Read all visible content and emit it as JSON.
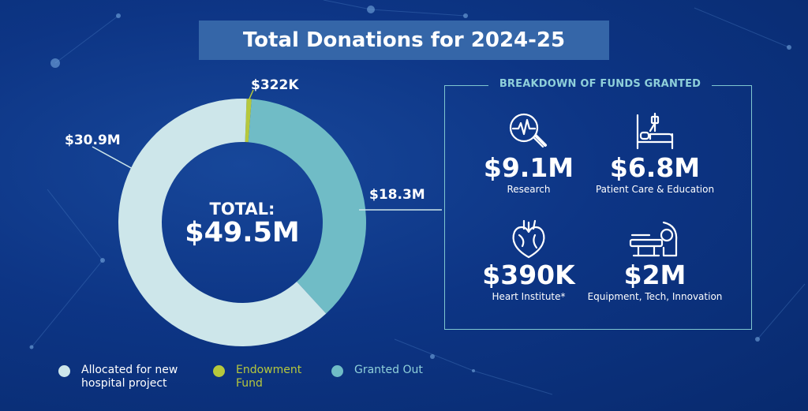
{
  "title": "Total Donations for 2024-25",
  "colors": {
    "background": "#0d3585",
    "allocated": "#cde6ea",
    "endowment": "#b6c83c",
    "granted": "#70bcc6",
    "title_box": "#3566a8",
    "panel_accent": "#8fd0da"
  },
  "chart_data": {
    "type": "pie",
    "title": "Total Donations for 2024-25",
    "center_label": "TOTAL:",
    "center_value": "$49.5M",
    "total": 49.5,
    "unit": "$M",
    "slices": [
      {
        "label": "Allocated for new hospital project",
        "value": 30.9,
        "display": "$30.9M",
        "color": "#cde6ea"
      },
      {
        "label": "Endowment Fund",
        "value": 0.322,
        "display": "$322K",
        "color": "#b6c83c"
      },
      {
        "label": "Granted Out",
        "value": 18.3,
        "display": "$18.3M",
        "color": "#70bcc6"
      }
    ],
    "legend_placement": "bottom"
  },
  "legend": [
    {
      "label": "Allocated for new hospital project",
      "color": "#cde6ea"
    },
    {
      "label": "Endowment Fund",
      "color": "#b6c83c"
    },
    {
      "label": "Granted Out",
      "color": "#70bcc6"
    }
  ],
  "breakdown": {
    "title": "BREAKDOWN OF FUNDS GRANTED",
    "items": [
      {
        "value": "$9.1M",
        "caption": "Research",
        "icon": "magnifier-heartbeat-icon"
      },
      {
        "value": "$6.8M",
        "caption": "Patient Care & Education",
        "icon": "hospital-bed-icon"
      },
      {
        "value": "$390K",
        "caption": "Heart Institute*",
        "icon": "heart-icon"
      },
      {
        "value": "$2M",
        "caption": "Equipment, Tech, Innovation",
        "icon": "medical-scanner-icon"
      }
    ]
  }
}
